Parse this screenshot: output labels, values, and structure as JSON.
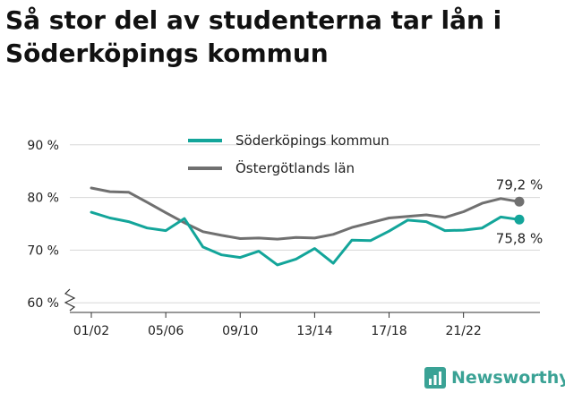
{
  "title": "Så stor del av studenterna tar lån i Söderköpings kommun",
  "brand": {
    "name": "Newsworthy",
    "icon": "newsworthy-bar-chart-icon",
    "color": "#3aa295"
  },
  "colors": {
    "series1": "#13a59a",
    "series2": "#707070",
    "grid": "#d7d7d7",
    "text": "#222222"
  },
  "chart_data": {
    "type": "line",
    "title": "Så stor del av studenterna tar lån i Söderköpings kommun",
    "xlabel": "",
    "ylabel": "",
    "ylim": [
      58,
      92
    ],
    "y_ticks": [
      60,
      70,
      80,
      90
    ],
    "y_tick_labels": [
      "60 %",
      "70 %",
      "80 %",
      "90 %"
    ],
    "y_axis_break": true,
    "grid": true,
    "legend_position": "top-center",
    "x_tick_labels": [
      "01/02",
      "05/06",
      "09/10",
      "13/14",
      "17/18",
      "21/22"
    ],
    "x": [
      "01/02",
      "02/03",
      "03/04",
      "04/05",
      "05/06",
      "06/07",
      "07/08",
      "08/09",
      "09/10",
      "10/11",
      "11/12",
      "12/13",
      "13/14",
      "14/15",
      "15/16",
      "16/17",
      "17/18",
      "18/19",
      "19/20",
      "20/21",
      "21/22",
      "22/23",
      "23/24",
      "24/25"
    ],
    "series": [
      {
        "name": "Söderköpings kommun",
        "color": "#13a59a",
        "values": [
          77.2,
          76.1,
          75.4,
          74.2,
          73.7,
          76.0,
          70.6,
          69.1,
          68.6,
          69.8,
          67.2,
          68.3,
          70.3,
          67.5,
          71.9,
          71.8,
          73.6,
          75.7,
          75.4,
          73.7,
          73.8,
          74.2,
          76.3,
          75.8
        ],
        "end_label": "75,8 %"
      },
      {
        "name": "Östergötlands län",
        "color": "#707070",
        "values": [
          81.8,
          81.1,
          81.0,
          79.1,
          77.1,
          75.2,
          73.5,
          72.8,
          72.2,
          72.3,
          72.1,
          72.4,
          72.3,
          73.0,
          74.3,
          75.2,
          76.1,
          76.4,
          76.7,
          76.2,
          77.3,
          78.9,
          79.8,
          79.2
        ],
        "end_label": "79,2 %"
      }
    ]
  }
}
